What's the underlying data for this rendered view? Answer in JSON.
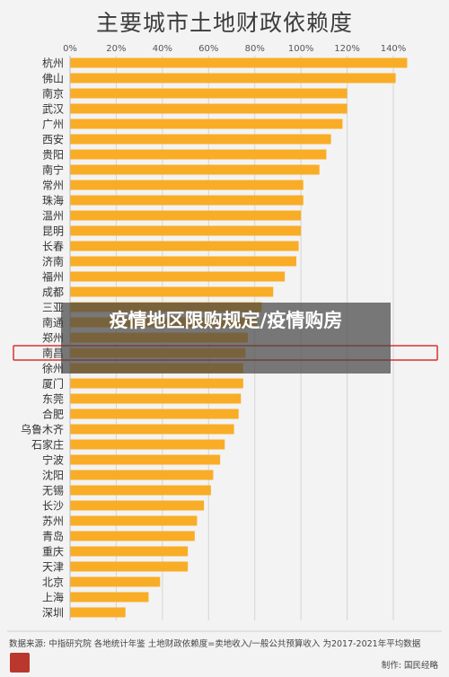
{
  "chart_data": {
    "type": "bar",
    "orientation": "horizontal",
    "title": "主要城市土地财政依赖度",
    "categories": [
      "杭州",
      "佛山",
      "南京",
      "武汉",
      "广州",
      "西安",
      "贵阳",
      "南宁",
      "常州",
      "珠海",
      "温州",
      "昆明",
      "长春",
      "济南",
      "福州",
      "成都",
      "三亚",
      "南通",
      "郑州",
      "南昌",
      "徐州",
      "厦门",
      "东莞",
      "合肥",
      "乌鲁木齐",
      "石家庄",
      "宁波",
      "沈阳",
      "无锡",
      "长沙",
      "苏州",
      "青岛",
      "重庆",
      "天津",
      "北京",
      "上海",
      "深圳"
    ],
    "values": [
      146,
      141,
      120,
      120,
      118,
      113,
      111,
      108,
      101,
      101,
      100,
      100,
      99,
      98,
      93,
      88,
      83,
      81,
      77,
      76,
      75,
      75,
      74,
      73,
      71,
      67,
      65,
      62,
      61,
      58,
      55,
      54,
      51,
      51,
      39,
      34,
      24
    ],
    "xlim": [
      0,
      140
    ],
    "ticks": [
      "0%",
      "20%",
      "40%",
      "60%",
      "80%",
      "100%",
      "120%",
      "140%"
    ],
    "tick_values": [
      0,
      20,
      40,
      60,
      80,
      100,
      120,
      140
    ],
    "unit": "%",
    "grid": true,
    "bar_color": "#f9ad26",
    "highlight_category": "南昌",
    "highlight_color": "#d9322c"
  },
  "overlay_text": "疫情地区限购规定/疫情购房",
  "source_text": "数据来源: 中指研究院 各地统计年鉴   土地财政依赖度=卖地收入/一般公共预算收入 为2017-2021年平均数据",
  "maker_text": "制作: 国民经略",
  "logo_text": "国民经略"
}
